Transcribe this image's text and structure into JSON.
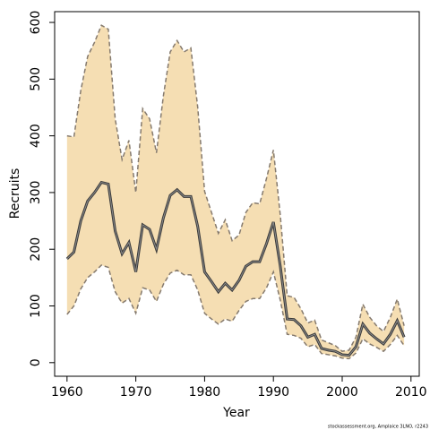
{
  "chart_data": {
    "type": "line",
    "x_label": "Year",
    "y_label": "Recruits",
    "footnote": "stockassessment.org, Amplaice 3LNO, r2243",
    "x": [
      1960,
      1961,
      1962,
      1963,
      1964,
      1965,
      1966,
      1967,
      1968,
      1969,
      1970,
      1971,
      1972,
      1973,
      1974,
      1975,
      1976,
      1977,
      1978,
      1979,
      1980,
      1981,
      1982,
      1983,
      1984,
      1985,
      1986,
      1987,
      1988,
      1989,
      1990,
      1991,
      1992,
      1993,
      1994,
      1995,
      1996,
      1997,
      1998,
      1999,
      2000,
      2001,
      2002,
      2003,
      2004,
      2005,
      2006,
      2007,
      2008,
      2009
    ],
    "values": [
      183,
      195,
      250,
      285,
      300,
      318,
      315,
      232,
      192,
      212,
      160,
      243,
      235,
      200,
      255,
      295,
      305,
      293,
      293,
      240,
      160,
      143,
      125,
      140,
      128,
      145,
      170,
      178,
      178,
      210,
      248,
      170,
      77,
      76,
      65,
      45,
      50,
      25,
      22,
      20,
      14,
      13,
      28,
      68,
      52,
      42,
      33,
      50,
      74,
      45
    ],
    "upper": [
      400,
      398,
      480,
      540,
      565,
      595,
      588,
      430,
      358,
      392,
      300,
      448,
      430,
      370,
      470,
      548,
      568,
      548,
      555,
      450,
      302,
      265,
      228,
      252,
      215,
      225,
      265,
      282,
      280,
      325,
      375,
      260,
      118,
      115,
      95,
      70,
      75,
      40,
      35,
      30,
      20,
      22,
      45,
      103,
      80,
      65,
      55,
      80,
      112,
      65
    ],
    "lower": [
      85,
      100,
      130,
      150,
      160,
      172,
      168,
      125,
      105,
      113,
      87,
      132,
      128,
      108,
      138,
      158,
      163,
      155,
      155,
      128,
      87,
      77,
      68,
      77,
      73,
      92,
      108,
      113,
      113,
      132,
      160,
      110,
      50,
      48,
      43,
      28,
      32,
      16,
      14,
      12,
      8,
      7,
      17,
      42,
      33,
      27,
      20,
      32,
      48,
      30
    ],
    "line_color": "#3a3a3a",
    "band_color": "#f5deb3",
    "band_edge_color": "#857a6e",
    "xlim": [
      1958.2,
      2011.2
    ],
    "ylim": [
      -24,
      619
    ],
    "xticks": [
      1960,
      1970,
      1980,
      1990,
      2000,
      2010
    ],
    "yticks": [
      0,
      100,
      200,
      300,
      400,
      500,
      600
    ]
  }
}
